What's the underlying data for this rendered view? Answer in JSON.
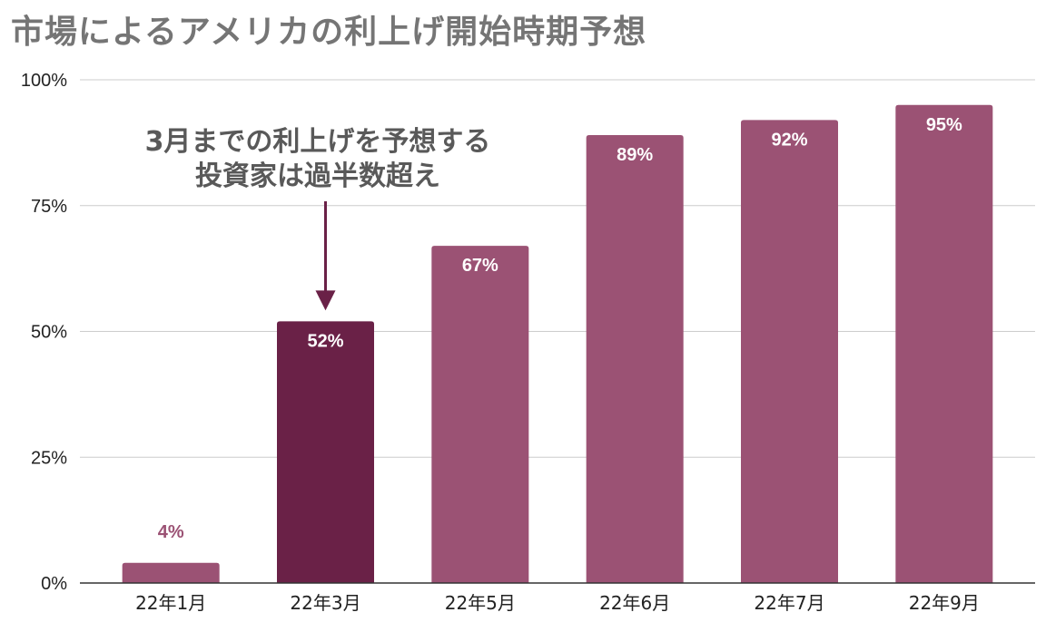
{
  "chart_data": {
    "type": "bar",
    "title": "市場によるアメリカの利上げ開始時期予想",
    "categories": [
      "22年1月",
      "22年3月",
      "22年5月",
      "22年6月",
      "22年7月",
      "22年9月"
    ],
    "values": [
      4,
      52,
      67,
      89,
      92,
      95
    ],
    "data_labels": [
      "4%",
      "52%",
      "67%",
      "89%",
      "92%",
      "95%"
    ],
    "highlight_index": 1,
    "ylim": [
      0,
      100
    ],
    "yticks": [
      0,
      25,
      50,
      75,
      100
    ],
    "ytick_labels": [
      "0%",
      "25%",
      "50%",
      "75%",
      "100%"
    ],
    "annotation": {
      "line1": "3月までの利上げを予想する",
      "line2": "投資家は過半数超え"
    },
    "colors": {
      "bar": "#9b5274",
      "highlight": "#6a2147",
      "arrow": "#6a2147",
      "grid": "#cccccc",
      "axis": "#333333",
      "label_outside": "#9b5274",
      "label_inside": "#ffffff"
    },
    "grid": true,
    "legend": "none"
  }
}
